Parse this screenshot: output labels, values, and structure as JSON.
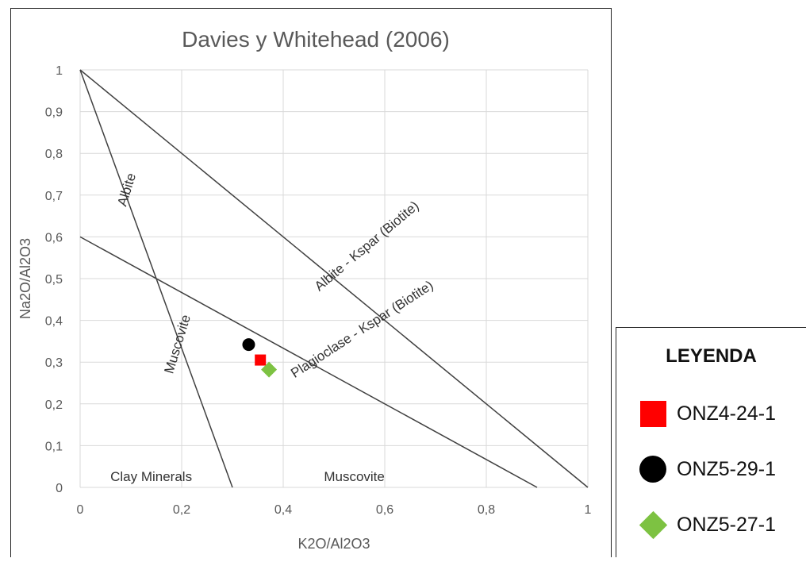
{
  "chart_data": {
    "type": "scatter",
    "title": "Davies y Whitehead (2006)",
    "xlabel": "K2O/Al2O3",
    "ylabel": "Na2O/Al2O3",
    "xlim": [
      0,
      1
    ],
    "ylim": [
      0,
      1
    ],
    "x_ticks": [
      "0",
      "0,2",
      "0,4",
      "0,6",
      "0,8",
      "1"
    ],
    "y_ticks": [
      "0",
      "0,1",
      "0,2",
      "0,3",
      "0,4",
      "0,5",
      "0,6",
      "0,7",
      "0,8",
      "0,9",
      "1"
    ],
    "grid": true,
    "reference_lines": [
      {
        "x": [
          0,
          1
        ],
        "y": [
          1,
          0
        ],
        "label": "Albite - Kspar (Biotite)"
      },
      {
        "x": [
          0,
          0.9
        ],
        "y": [
          0.6,
          0
        ],
        "label": "Plagioclase - Kspar (Biotite)"
      },
      {
        "x": [
          0,
          0.3
        ],
        "y": [
          1,
          0
        ],
        "label": ""
      }
    ],
    "annotations": [
      {
        "text": "Albite",
        "x": 0.1,
        "y": 0.71,
        "rotation": -73
      },
      {
        "text": "Muscovite",
        "x": 0.2,
        "y": 0.34,
        "rotation": -73
      },
      {
        "text": "Albite - Kspar (Biotite)",
        "x": 0.57,
        "y": 0.57,
        "rotation": -40
      },
      {
        "text": "Plagioclase - Kspar (Biotite)",
        "x": 0.56,
        "y": 0.37,
        "rotation": -33
      },
      {
        "text": "Clay Minerals",
        "x": 0.14,
        "y": 0.015,
        "rotation": 0
      },
      {
        "text": "Muscovite",
        "x": 0.54,
        "y": 0.015,
        "rotation": 0
      }
    ],
    "series": [
      {
        "name": "ONZ4-24-1",
        "color": "#ff0000",
        "marker": "square",
        "points": [
          [
            0.355,
            0.305
          ]
        ]
      },
      {
        "name": "ONZ5-29-1",
        "color": "#000000",
        "marker": "circle",
        "points": [
          [
            0.332,
            0.342
          ]
        ]
      },
      {
        "name": "ONZ5-27-1",
        "color": "#7dc242",
        "marker": "diamond",
        "points": [
          [
            0.372,
            0.282
          ]
        ]
      }
    ]
  },
  "legend": {
    "title": "LEYENDA",
    "items": [
      {
        "label": "ONZ4-24-1",
        "color": "#ff0000",
        "marker": "square"
      },
      {
        "label": "ONZ5-29-1",
        "color": "#000000",
        "marker": "circle"
      },
      {
        "label": "ONZ5-27-1",
        "color": "#7dc242",
        "marker": "diamond"
      }
    ]
  }
}
